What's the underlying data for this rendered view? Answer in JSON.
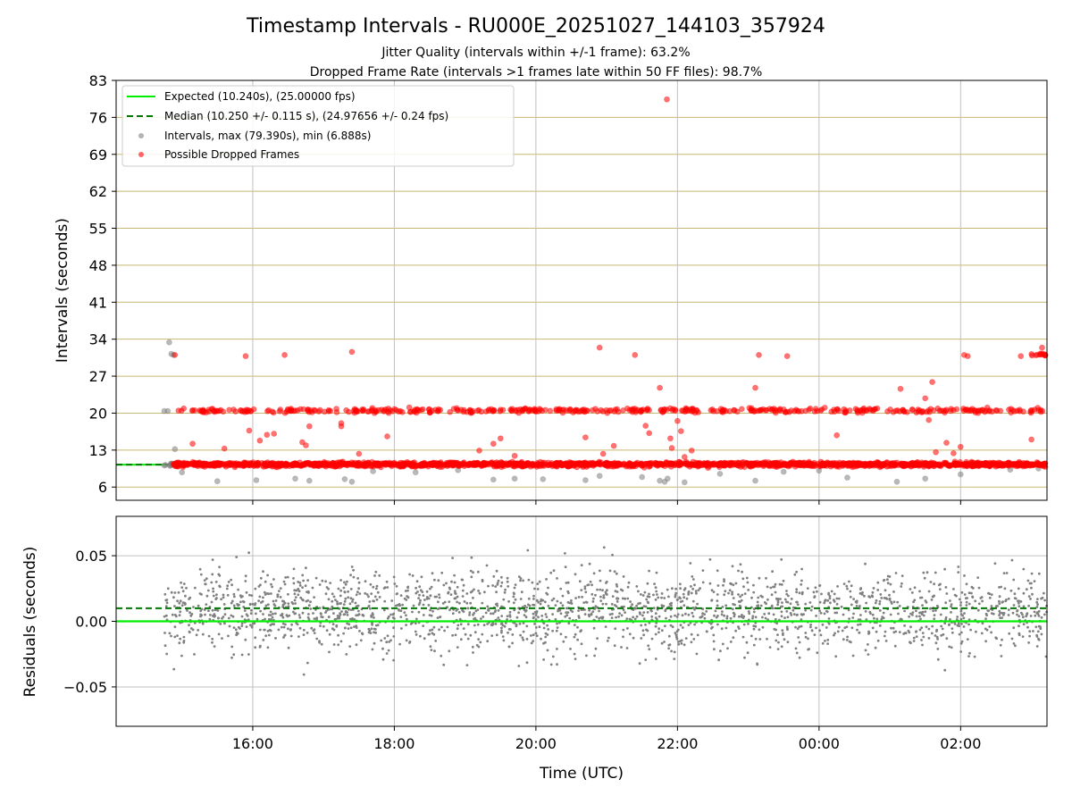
{
  "chart_data": [
    {
      "type": "scatter",
      "title": "Timestamp Intervals - RU000E_20251027_144103_357924",
      "subtitles": [
        "Jitter Quality (intervals within +/-1 frame): 63.2%",
        "Dropped Frame Rate (intervals >1 frames late within 50 FF files): 98.7%"
      ],
      "ylabel": "Intervals (seconds)",
      "ylim": [
        3.5,
        83
      ],
      "yticks": [
        6,
        13,
        20,
        27,
        34,
        41,
        48,
        55,
        62,
        69,
        76,
        83
      ],
      "grid": true,
      "legend_position": "top-left",
      "legend": [
        "Expected (10.240s), (25.00000 fps)",
        "Median (10.250 +/- 0.115 s), (24.97656 +/- 0.24 fps)",
        "Intervals, max (79.390s), min (6.888s)",
        "Possible Dropped Frames"
      ],
      "expected_interval": 10.24,
      "median_interval": 10.25,
      "max_interval": 79.39,
      "min_interval": 6.888,
      "series": [
        {
          "name": "Intervals, max (79.390s), min (6.888s)",
          "points": [
            [
              14.75,
              20.4
            ],
            [
              14.8,
              20.4
            ],
            [
              14.85,
              31.2
            ],
            [
              14.82,
              33.4
            ],
            [
              14.88,
              31.0
            ],
            [
              14.9,
              13.2
            ],
            [
              14.85,
              10.3
            ],
            [
              15.0,
              8.8
            ],
            [
              15.5,
              7.1
            ],
            [
              16.05,
              7.3
            ],
            [
              16.6,
              7.6
            ],
            [
              16.8,
              7.2
            ],
            [
              17.3,
              7.5
            ],
            [
              17.4,
              7.0
            ],
            [
              17.7,
              9.0
            ],
            [
              18.3,
              8.8
            ],
            [
              18.9,
              9.2
            ],
            [
              19.4,
              7.4
            ],
            [
              19.7,
              7.6
            ],
            [
              20.1,
              7.5
            ],
            [
              20.7,
              7.3
            ],
            [
              20.9,
              8.1
            ],
            [
              21.5,
              7.9
            ],
            [
              21.75,
              7.2
            ],
            [
              21.82,
              7.0
            ],
            [
              21.86,
              7.6
            ],
            [
              22.1,
              6.9
            ],
            [
              22.6,
              8.5
            ],
            [
              23.1,
              7.2
            ],
            [
              23.5,
              8.9
            ],
            [
              24.0,
              9.1
            ],
            [
              24.4,
              7.8
            ],
            [
              25.1,
              7.0
            ],
            [
              25.5,
              7.6
            ],
            [
              26.0,
              8.4
            ],
            [
              26.7,
              9.3
            ],
            [
              27.1,
              9.5
            ]
          ],
          "color": "#808080"
        },
        {
          "name": "Possible Dropped Frames",
          "points": [
            [
              14.9,
              31.0
            ],
            [
              15.15,
              14.2
            ],
            [
              15.6,
              13.3
            ],
            [
              15.9,
              30.8
            ],
            [
              15.95,
              16.7
            ],
            [
              16.1,
              14.8
            ],
            [
              16.2,
              15.9
            ],
            [
              16.3,
              16.1
            ],
            [
              16.45,
              31.0
            ],
            [
              16.7,
              14.5
            ],
            [
              16.8,
              17.5
            ],
            [
              16.75,
              13.9
            ],
            [
              17.25,
              18.1
            ],
            [
              17.25,
              17.5
            ],
            [
              17.4,
              31.6
            ],
            [
              17.5,
              12.3
            ],
            [
              17.9,
              15.6
            ],
            [
              19.2,
              12.9
            ],
            [
              19.4,
              14.2
            ],
            [
              19.5,
              15.2
            ],
            [
              19.7,
              11.9
            ],
            [
              20.7,
              15.4
            ],
            [
              20.9,
              32.4
            ],
            [
              20.95,
              12.3
            ],
            [
              21.1,
              13.8
            ],
            [
              21.4,
              31.0
            ],
            [
              21.55,
              17.6
            ],
            [
              21.6,
              16.2
            ],
            [
              21.75,
              24.8
            ],
            [
              21.9,
              15.2
            ],
            [
              21.92,
              13.4
            ],
            [
              22.0,
              18.5
            ],
            [
              22.05,
              16.6
            ],
            [
              22.1,
              11.7
            ],
            [
              22.2,
              12.9
            ],
            [
              23.1,
              24.8
            ],
            [
              23.15,
              31.0
            ],
            [
              23.55,
              30.8
            ],
            [
              24.25,
              15.8
            ],
            [
              25.15,
              24.6
            ],
            [
              25.5,
              22.8
            ],
            [
              25.6,
              25.9
            ],
            [
              25.55,
              18.7
            ],
            [
              25.65,
              12.6
            ],
            [
              25.8,
              14.4
            ],
            [
              25.9,
              12.4
            ],
            [
              26.0,
              13.6
            ],
            [
              26.05,
              31.0
            ],
            [
              26.1,
              30.8
            ],
            [
              26.85,
              30.8
            ],
            [
              27.0,
              15.0
            ],
            [
              27.15,
              32.4
            ],
            [
              21.85,
              79.4
            ]
          ],
          "color": "#ff0000"
        }
      ],
      "dense_bands": [
        {
          "series": "Intervals, max (79.390s), min (6.888s)",
          "x_range": [
            14.75,
            14.95
          ],
          "y": 10.24
        },
        {
          "series": "Possible Dropped Frames",
          "x_range": [
            14.88,
            27.2
          ],
          "y": 10.3
        },
        {
          "series": "Possible Dropped Frames",
          "x_range": [
            14.95,
            27.2
          ],
          "y": 20.5
        },
        {
          "series": "Possible Dropped Frames",
          "x_range": [
            27.0,
            27.2
          ],
          "y": 31.0
        }
      ]
    },
    {
      "type": "scatter",
      "xlabel": "Time (UTC)",
      "ylabel": "Residuals (seconds)",
      "xlim": [
        14.07,
        27.22
      ],
      "x_tick_hours": [
        16,
        18,
        20,
        22,
        24,
        26
      ],
      "x_tick_labels": [
        "16:00",
        "18:00",
        "20:00",
        "22:00",
        "00:00",
        "02:00"
      ],
      "ylim": [
        -0.08,
        0.08
      ],
      "yticks": [
        -0.05,
        0.0,
        0.05
      ],
      "ytick_labels": [
        "−0.05",
        "0.00",
        "0.05"
      ],
      "grid": true,
      "expected_residual": 0.0,
      "median_residual": 0.01,
      "residual_x_range": [
        14.75,
        27.22
      ],
      "residual_spread": 0.08,
      "color": "#808080"
    }
  ],
  "colors": {
    "expected": "#00ee00",
    "median": "#007700",
    "intervals": "#808080",
    "dropped": "#ff0000",
    "hgrid_top": "#c8b872",
    "grid": "#c0c0c0"
  }
}
